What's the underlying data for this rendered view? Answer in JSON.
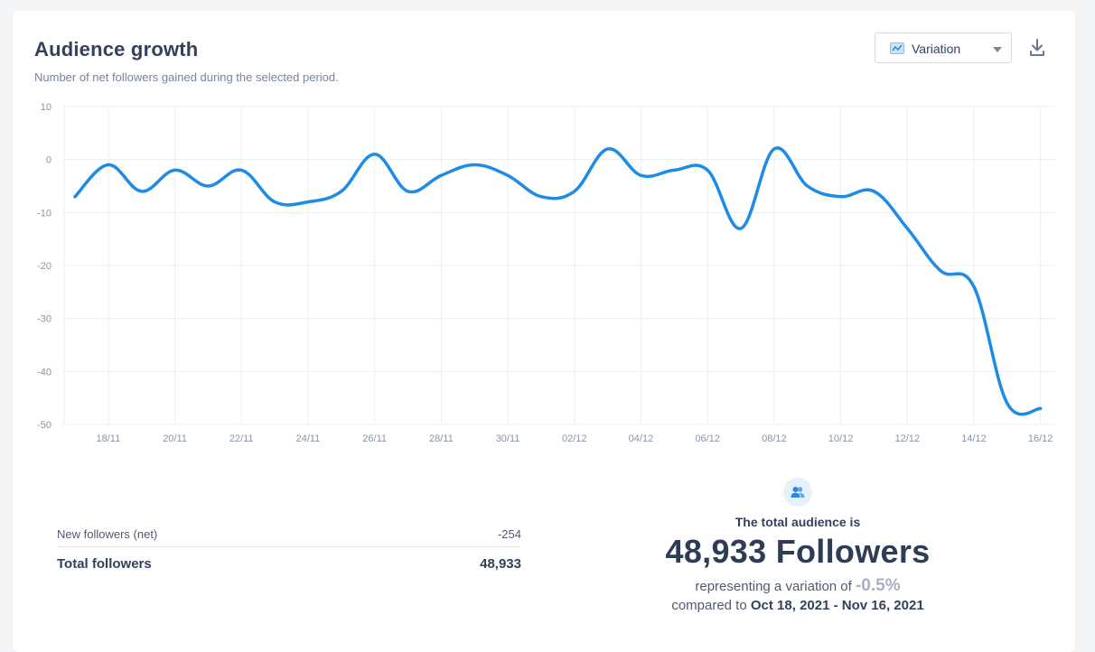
{
  "header": {
    "title": "Audience growth",
    "subtitle": "Number of net followers gained during the selected period."
  },
  "controls": {
    "view_select": "Variation",
    "view_icon": "line-chart-icon",
    "download_icon": "download-icon"
  },
  "chart_data": {
    "type": "line",
    "title": "",
    "xlabel": "",
    "ylabel": "",
    "ylim": [
      -50,
      10
    ],
    "yticks": [
      10,
      0,
      -10,
      -20,
      -30,
      -40,
      -50
    ],
    "grid": true,
    "x_labels": [
      "18/11",
      "20/11",
      "22/11",
      "24/11",
      "26/11",
      "28/11",
      "30/11",
      "02/12",
      "04/12",
      "06/12",
      "08/12",
      "10/12",
      "12/12",
      "14/12",
      "16/12"
    ],
    "x": [
      "17/11",
      "18/11",
      "19/11",
      "20/11",
      "21/11",
      "22/11",
      "23/11",
      "24/11",
      "25/11",
      "26/11",
      "27/11",
      "28/11",
      "29/11",
      "30/11",
      "01/12",
      "02/12",
      "03/12",
      "04/12",
      "05/12",
      "06/12",
      "07/12",
      "08/12",
      "09/12",
      "10/12",
      "11/12",
      "12/12",
      "13/12",
      "14/12",
      "15/12",
      "16/12"
    ],
    "series": [
      {
        "color": "#1e8be6",
        "values": [
          -7,
          -1,
          -6,
          -2,
          -5,
          -2,
          -8,
          -8,
          -6,
          1,
          -6,
          -3,
          -1,
          -3,
          -7,
          -6,
          2,
          -3,
          -2,
          -2,
          -13,
          2,
          -5,
          -7,
          -6,
          -13,
          -21,
          -24,
          -46,
          -47
        ]
      }
    ]
  },
  "stats": {
    "new_followers_label": "New followers (net)",
    "new_followers_value": "-254",
    "total_label": "Total followers",
    "total_value": "48,933"
  },
  "audience": {
    "icon": "users-icon",
    "line1": "The total audience is",
    "big": "48,933 Followers",
    "variation_prefix": "representing a variation of",
    "variation_pct": "-0.5%",
    "compared_prefix": "compared to",
    "compared_range": "Oct 18, 2021 - Nov 16, 2021"
  }
}
